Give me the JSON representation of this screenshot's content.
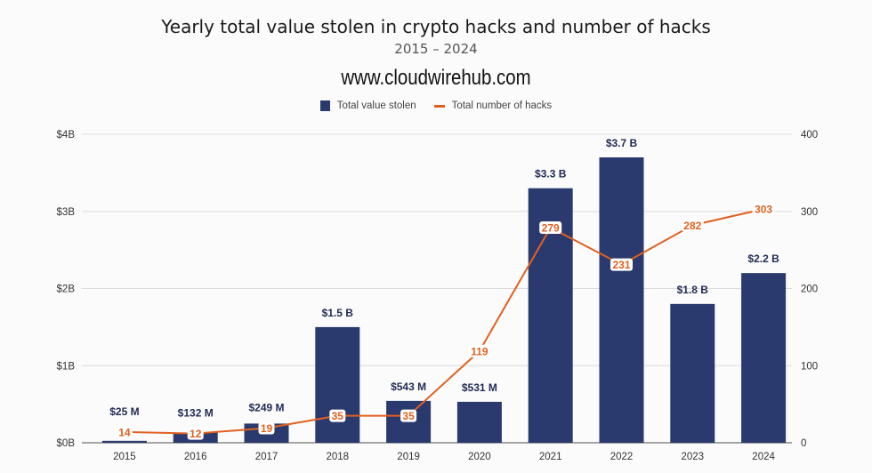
{
  "chart_data": {
    "type": "bar+line",
    "title": "Yearly total value stolen in crypto hacks and number of hacks",
    "subtitle": "2015 – 2024",
    "watermark": "www.cloudwirehub.com",
    "categories": [
      "2015",
      "2016",
      "2017",
      "2018",
      "2019",
      "2020",
      "2021",
      "2022",
      "2023",
      "2024"
    ],
    "series": [
      {
        "name": "Total value stolen",
        "type": "bar",
        "axis": "left",
        "color": "#2b3a6e",
        "values": [
          0.025,
          0.132,
          0.249,
          1.5,
          0.543,
          0.531,
          3.3,
          3.7,
          1.8,
          2.2
        ],
        "labels": [
          "$25  M",
          "$132  M",
          "$249  M",
          "$1.5 B",
          "$543  M",
          "$531  M",
          "$3.3 B",
          "$3.7 B",
          "$1.8 B",
          "$2.2 B"
        ]
      },
      {
        "name": "Total number of hacks",
        "type": "line",
        "axis": "right",
        "color": "#e0601f",
        "values": [
          14,
          12,
          19,
          35,
          35,
          119,
          279,
          231,
          282,
          303
        ],
        "labels": [
          "14",
          "12",
          "19",
          "35",
          "35",
          "119",
          "279",
          "231",
          "282",
          "303"
        ]
      }
    ],
    "y_left": {
      "unit": "billion USD",
      "range": [
        0,
        4
      ],
      "ticks": [
        "$0B",
        "$1B",
        "$2B",
        "$3B",
        "$4B"
      ]
    },
    "y_right": {
      "range": [
        0,
        400
      ],
      "ticks": [
        "0",
        "100",
        "200",
        "300",
        "400"
      ]
    },
    "grid": true,
    "legend": "top-center"
  }
}
